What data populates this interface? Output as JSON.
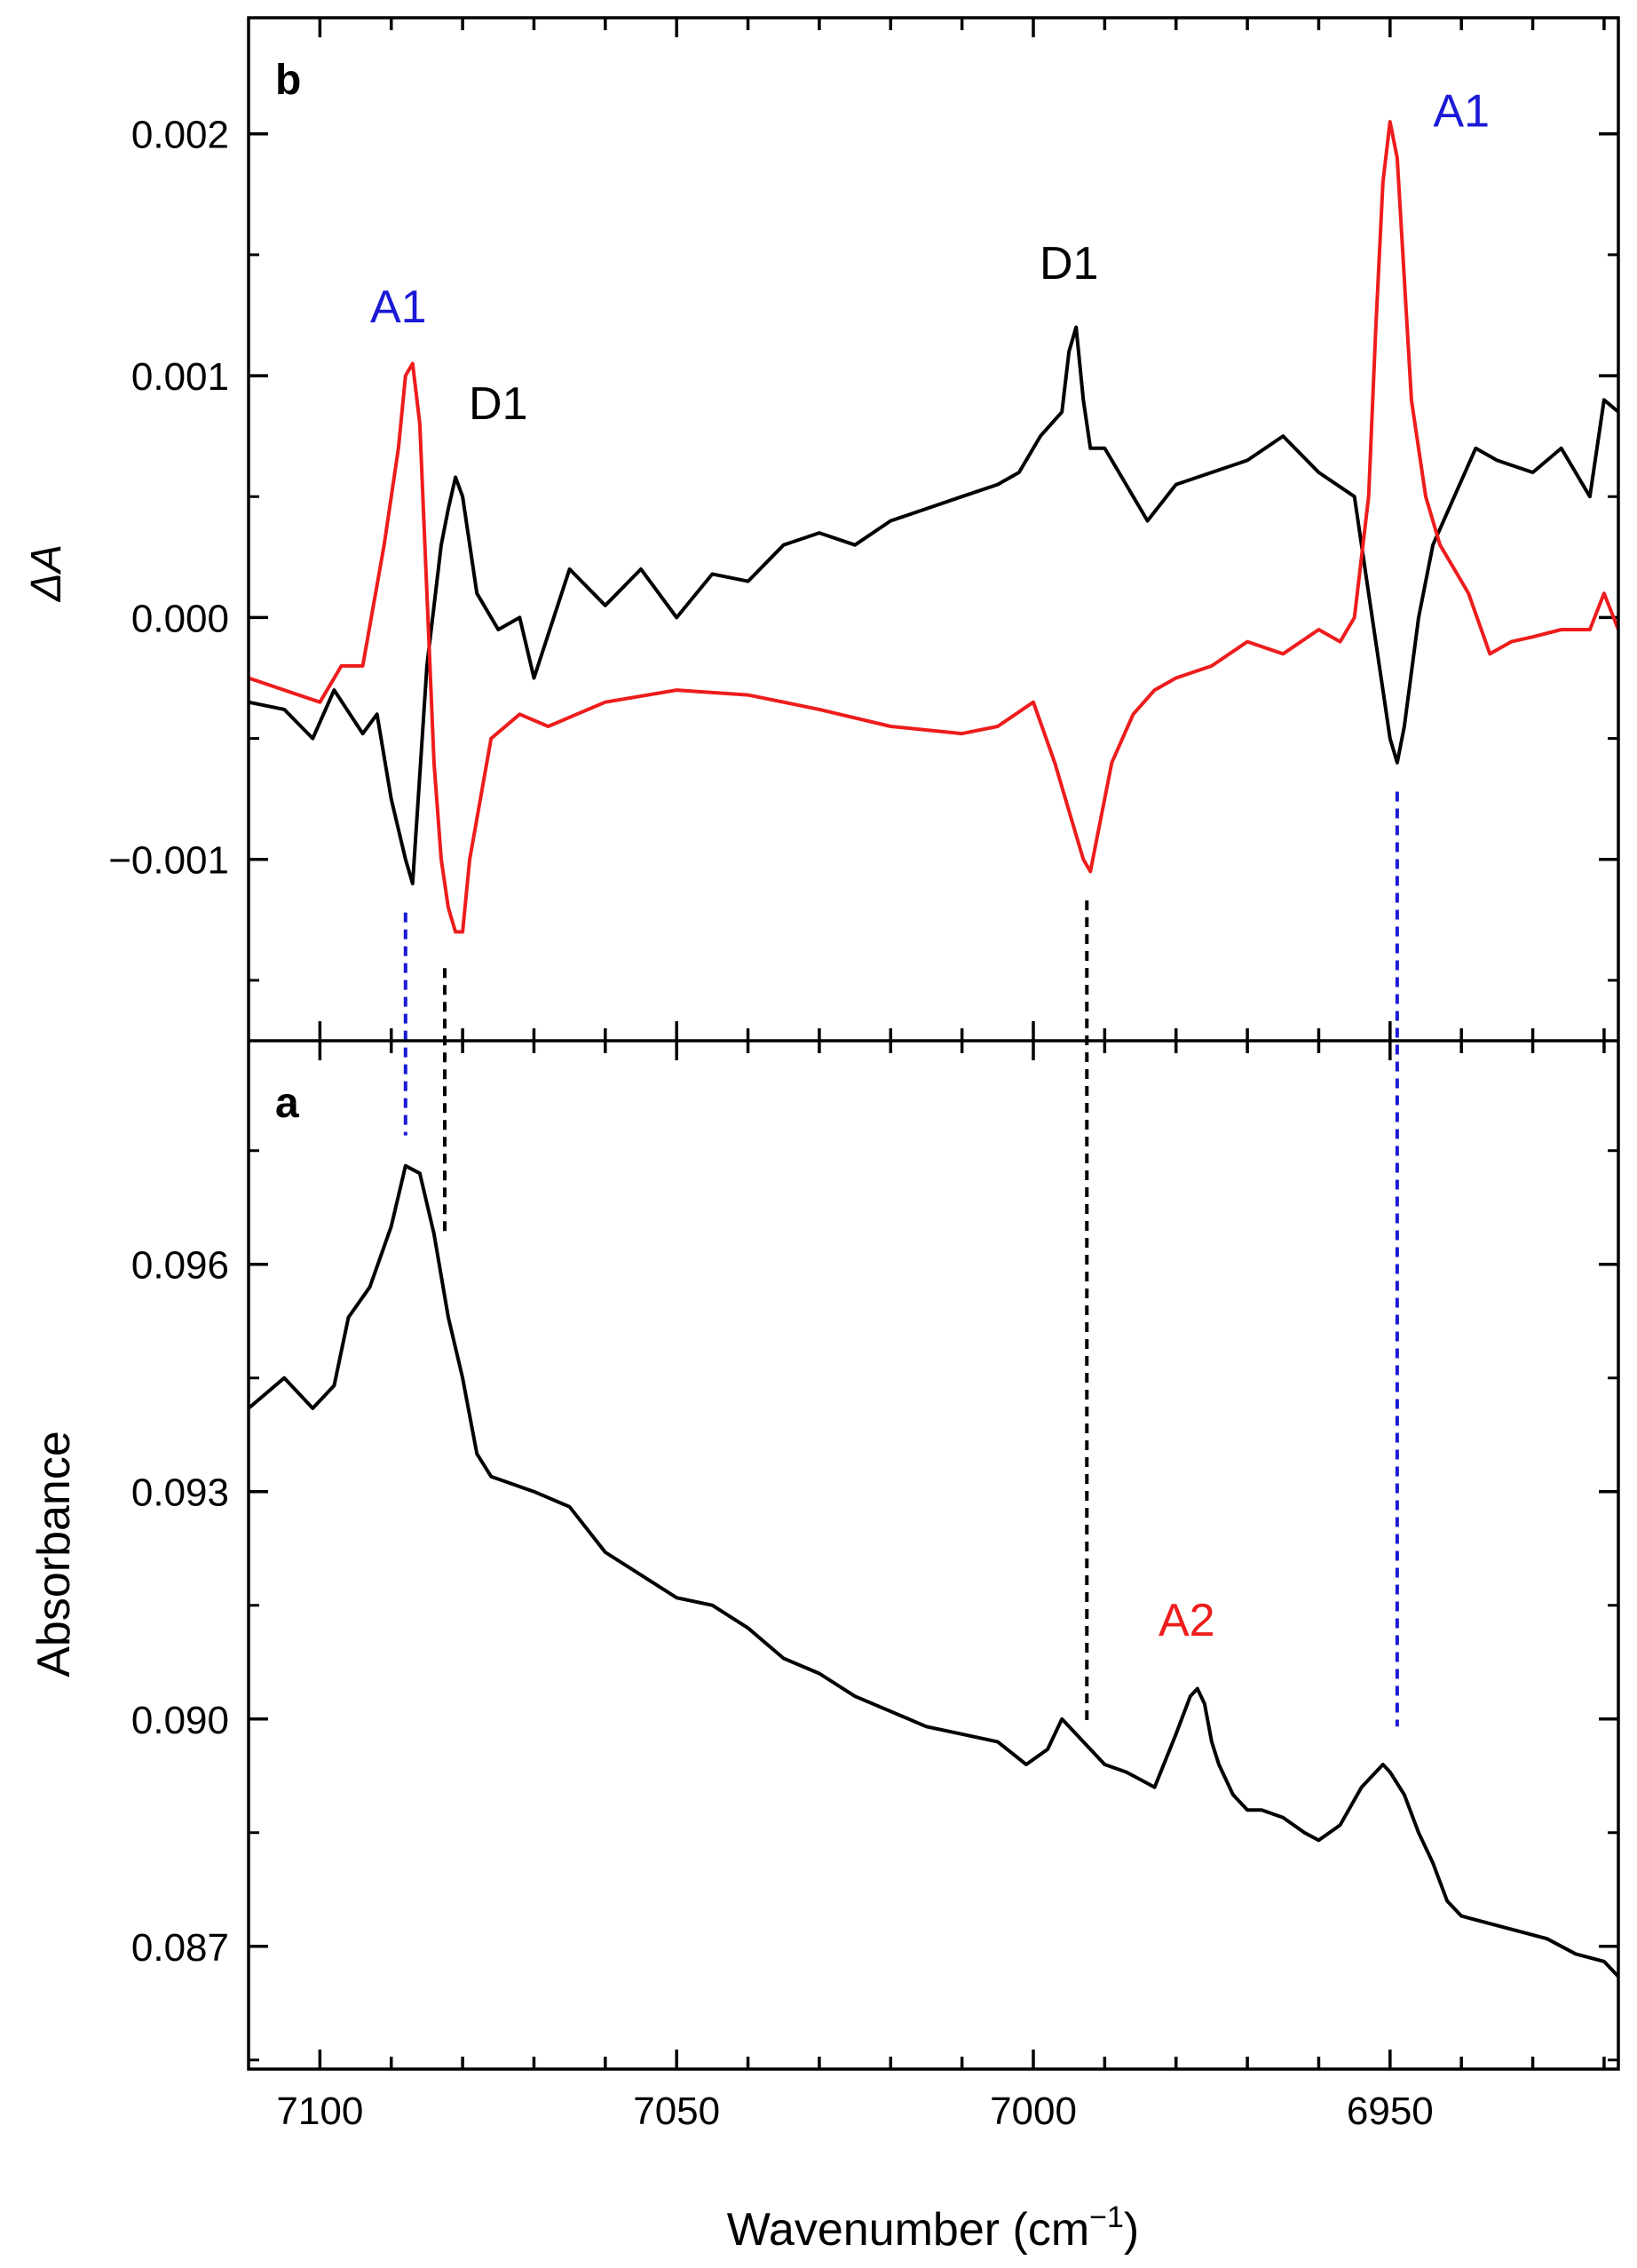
{
  "chart_data": [
    {
      "panel": "b",
      "type": "line",
      "ylabel": "ΔA",
      "xlabel": "",
      "xlim": [
        7110,
        6918
      ],
      "ylim": [
        -0.00175,
        0.00248
      ],
      "yticks": [
        -0.001,
        0.0,
        0.001,
        0.002
      ],
      "ytick_labels": [
        "−0.001",
        "0.000",
        "0.001",
        "0.002"
      ],
      "colors": {
        "black": "#000000",
        "red": "#ee1c1c",
        "blue": "#1a1ad6"
      },
      "series": [
        {
          "color": "#000000",
          "x": [
            7110,
            7105,
            7101,
            7098,
            7094,
            7092,
            7090,
            7088,
            7087,
            7086,
            7085,
            7083,
            7082,
            7081,
            7080,
            7078,
            7075,
            7072,
            7070,
            7065,
            7060,
            7055,
            7050,
            7045,
            7040,
            7035,
            7030,
            7025,
            7020,
            7015,
            7010,
            7005,
            7002,
            6999,
            6996,
            6995,
            6994,
            6993,
            6992,
            6990,
            6987,
            6984,
            6980,
            6975,
            6970,
            6965,
            6960,
            6955,
            6953,
            6951,
            6950,
            6949,
            6948,
            6946,
            6944,
            6941,
            6938,
            6935,
            6930,
            6926,
            6922,
            6920,
            6918
          ],
          "y": [
            -0.00035,
            -0.00038,
            -0.0005,
            -0.0003,
            -0.00048,
            -0.0004,
            -0.00075,
            -0.001,
            -0.0011,
            -0.00065,
            -0.0002,
            0.0003,
            0.00045,
            0.00058,
            0.0005,
            0.0001,
            -5e-05,
            0.0,
            -0.00025,
            0.0002,
            5e-05,
            0.0002,
            0.0,
            0.00018,
            0.00015,
            0.0003,
            0.00035,
            0.0003,
            0.0004,
            0.00045,
            0.0005,
            0.00055,
            0.0006,
            0.00075,
            0.00085,
            0.0011,
            0.0012,
            0.0009,
            0.0007,
            0.0007,
            0.00055,
            0.0004,
            0.00055,
            0.0006,
            0.00065,
            0.00075,
            0.0006,
            0.0005,
            0.0001,
            -0.0003,
            -0.0005,
            -0.0006,
            -0.00045,
            0.0,
            0.0003,
            0.0005,
            0.0007,
            0.00065,
            0.0006,
            0.0007,
            0.0005,
            0.0009,
            0.00085
          ]
        },
        {
          "color": "#ee1c1c",
          "x": [
            7110,
            7105,
            7100,
            7097,
            7094,
            7091,
            7089,
            7088,
            7087,
            7086,
            7085,
            7084,
            7083,
            7082,
            7081,
            7080,
            7079,
            7076,
            7072,
            7068,
            7060,
            7050,
            7040,
            7030,
            7020,
            7010,
            7005,
            7000,
            6997,
            6995,
            6993,
            6992,
            6991,
            6989,
            6986,
            6983,
            6980,
            6975,
            6970,
            6965,
            6960,
            6957,
            6955,
            6953,
            6952,
            6951,
            6950,
            6949,
            6948,
            6947,
            6945,
            6943,
            6941,
            6939,
            6936,
            6933,
            6930,
            6926,
            6922,
            6920,
            6918
          ],
          "y": [
            -0.00025,
            -0.0003,
            -0.00035,
            -0.0002,
            -0.0002,
            0.0003,
            0.0007,
            0.001,
            0.00105,
            0.0008,
            0.0001,
            -0.0006,
            -0.001,
            -0.0012,
            -0.0013,
            -0.0013,
            -0.001,
            -0.0005,
            -0.0004,
            -0.00045,
            -0.00035,
            -0.0003,
            -0.00032,
            -0.00038,
            -0.00045,
            -0.00048,
            -0.00045,
            -0.00035,
            -0.0006,
            -0.0008,
            -0.001,
            -0.00105,
            -0.0009,
            -0.0006,
            -0.0004,
            -0.0003,
            -0.00025,
            -0.0002,
            -0.0001,
            -0.00015,
            -5e-05,
            -0.0001,
            0.0,
            0.0005,
            0.0012,
            0.0018,
            0.00205,
            0.0019,
            0.0014,
            0.0009,
            0.0005,
            0.0003,
            0.0002,
            0.0001,
            -0.00015,
            -0.0001,
            -8e-05,
            -5e-05,
            -5e-05,
            0.0001,
            -5e-05
          ]
        }
      ],
      "annotations": [
        {
          "text": "b",
          "color": "#000000"
        },
        {
          "text": "A1",
          "color": "#1a1ad6",
          "x": 7089,
          "y": 0.00122
        },
        {
          "text": "D1",
          "color": "#000000",
          "x": 7075,
          "y": 0.00082
        },
        {
          "text": "D1",
          "color": "#000000",
          "x": 6995,
          "y": 0.0014
        },
        {
          "text": "A1",
          "color": "#1a1ad6",
          "x": 6940,
          "y": 0.00203
        }
      ]
    },
    {
      "panel": "a",
      "type": "line",
      "ylabel": "Absorbance",
      "xlabel": "Wavenumber (cm−1)",
      "xlim": [
        7110,
        6918
      ],
      "ylim": [
        0.08538,
        0.09895
      ],
      "xticks": [
        7100,
        7050,
        7000,
        6950
      ],
      "xtick_labels": [
        "7100",
        "7050",
        "7000",
        "6950"
      ],
      "yticks": [
        0.087,
        0.09,
        0.093,
        0.096
      ],
      "ytick_labels": [
        "0.087",
        "0.090",
        "0.093",
        "0.096"
      ],
      "series": [
        {
          "color": "#000000",
          "x": [
            7110,
            7105,
            7101,
            7098,
            7096,
            7093,
            7090,
            7088,
            7086,
            7084,
            7082,
            7080,
            7078,
            7076,
            7070,
            7065,
            7060,
            7055,
            7050,
            7045,
            7040,
            7035,
            7030,
            7025,
            7020,
            7015,
            7010,
            7005,
            7001,
            6998,
            6996,
            6994,
            6992,
            6990,
            6987,
            6985,
            6983,
            6980,
            6978,
            6977,
            6976,
            6975,
            6974,
            6972,
            6970,
            6968,
            6965,
            6962,
            6960,
            6957,
            6954,
            6951,
            6950,
            6948,
            6946,
            6944,
            6942,
            6940,
            6936,
            6932,
            6928,
            6924,
            6920,
            6918
          ],
          "y": [
            0.0941,
            0.0945,
            0.0941,
            0.0944,
            0.0953,
            0.0957,
            0.0965,
            0.0973,
            0.0972,
            0.0964,
            0.0953,
            0.0945,
            0.0935,
            0.0932,
            0.093,
            0.0928,
            0.0922,
            0.0919,
            0.0916,
            0.0915,
            0.0912,
            0.0908,
            0.0906,
            0.0903,
            0.0901,
            0.0899,
            0.0898,
            0.0897,
            0.0894,
            0.0896,
            0.09,
            0.0898,
            0.0896,
            0.0894,
            0.0893,
            0.0892,
            0.0891,
            0.0898,
            0.0903,
            0.0904,
            0.0902,
            0.0897,
            0.0894,
            0.089,
            0.0888,
            0.0888,
            0.0887,
            0.0885,
            0.0884,
            0.0886,
            0.0891,
            0.0894,
            0.0893,
            0.089,
            0.0885,
            0.0881,
            0.0876,
            0.0874,
            0.0873,
            0.0872,
            0.0871,
            0.0869,
            0.0868,
            0.0866
          ]
        }
      ],
      "annotations": [
        {
          "text": "a",
          "color": "#000000"
        },
        {
          "text": "A2",
          "color": "#ee1c1c",
          "x": 6978.5,
          "y": 0.0911
        }
      ]
    }
  ],
  "guides": [
    {
      "x": 7088,
      "color": "#1a1ad6",
      "b_top": -0.00122,
      "a_bottom": 0.0977
    },
    {
      "x": 7082.5,
      "color": "#000000",
      "b_top": -0.00145,
      "a_bottom": 0.0964
    },
    {
      "x": 6992.5,
      "color": "#000000",
      "b_top": -0.00117,
      "a_bottom": 0.0899
    },
    {
      "x": 6949,
      "color": "#1a1ad6",
      "b_top": -0.00072,
      "a_bottom": 0.0899
    }
  ]
}
